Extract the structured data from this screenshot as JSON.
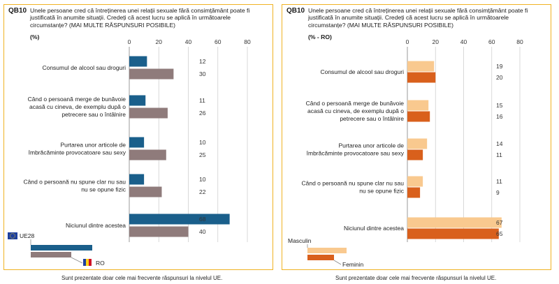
{
  "footnote": "Sunt prezentate doar cele mai frecvente răspunsuri la nivelul UE.",
  "chart_data": [
    {
      "type": "bar",
      "question_code": "QB10",
      "question": "Unele persoane cred că întreținerea unei relații sexuale fără consimțământ poate fi justificată în anumite situații. Credeți că acest lucru se aplică în următoarele circumstanțe? (MAI MULTE RĂSPUNSURI POSIBILE)",
      "units": "(%)",
      "categories": [
        "Consumul de alcool sau droguri",
        "Când o persoană merge de bunăvoie acasă cu cineva, de exemplu după o petrecere sau o întâlnire",
        "Purtarea unor articole de îmbrăcăminte provocatoare sau sexy",
        "Când o persoană nu spune clar nu sau nu se opune fizic",
        "Niciunul dintre acestea"
      ],
      "category_lines": [
        [
          "Consumul de alcool sau droguri"
        ],
        [
          "Când o persoană merge de bunăvoie",
          "acasă cu cineva, de exemplu după o",
          "petrecere sau o întâlnire"
        ],
        [
          "Purtarea unor articole de",
          "îmbrăcăminte provocatoare sau sexy"
        ],
        [
          "Când o persoană nu spune clar nu sau",
          "nu se opune fizic"
        ],
        [
          "Niciunul dintre acestea"
        ]
      ],
      "series": [
        {
          "name": "UE28",
          "values": [
            12,
            11,
            10,
            10,
            68
          ],
          "color": "#1a5f8b"
        },
        {
          "name": "RO",
          "values": [
            30,
            26,
            25,
            22,
            40
          ],
          "color": "#8f7b7b"
        }
      ],
      "xlim": [
        0,
        80
      ],
      "xticks": [
        0,
        20,
        40,
        60,
        80
      ],
      "grid": true
    },
    {
      "type": "bar",
      "question_code": "QB10",
      "question": "Unele persoane cred că întreținerea unei relații sexuale fără consimțământ poate fi justificată în anumite situații. Credeți că acest lucru se aplică în următoarele circumstanțe? (MAI MULTE RĂSPUNSURI POSIBILE)",
      "units": "(% - RO)",
      "categories": [
        "Consumul de alcool sau droguri",
        "Când o persoană merge de bunăvoie acasă cu cineva, de exemplu după o petrecere sau o întâlnire",
        "Purtarea unor articole de îmbrăcăminte provocatoare sau sexy",
        "Când o persoană nu spune clar nu sau nu se opune fizic",
        "Niciunul dintre acestea"
      ],
      "category_lines": [
        [
          "Consumul de alcool sau droguri"
        ],
        [
          "Când o persoană merge de bunăvoie",
          "acasă cu cineva, de exemplu după o",
          "petrecere sau o întâlnire"
        ],
        [
          "Purtarea unor articole de",
          "îmbrăcăminte provocatoare sau sexy"
        ],
        [
          "Când o persoană nu spune clar nu sau",
          "nu se opune fizic"
        ],
        [
          "Niciunul dintre acestea"
        ]
      ],
      "series": [
        {
          "name": "Masculin",
          "values": [
            19,
            15,
            14,
            11,
            67
          ],
          "color": "#f9c98f"
        },
        {
          "name": "Feminin",
          "values": [
            20,
            16,
            11,
            9,
            65
          ],
          "color": "#d9601c"
        }
      ],
      "xlim": [
        0,
        80
      ],
      "xticks": [
        0,
        20,
        40,
        60,
        80
      ],
      "grid": true
    }
  ]
}
